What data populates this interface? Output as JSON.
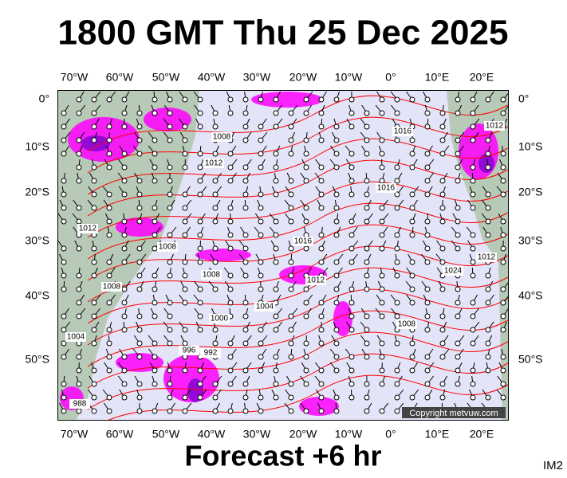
{
  "header": {
    "title": "1800 GMT Thu 25 Dec 2025"
  },
  "map": {
    "lon_labels": [
      "70°W",
      "60°W",
      "50°W",
      "40°W",
      "30°W",
      "20°W",
      "10°W",
      "0°",
      "10°E",
      "20°E"
    ],
    "lat_labels": [
      "0°",
      "10°S",
      "20°S",
      "30°S",
      "40°S",
      "50°S"
    ],
    "isobar_labels": [
      "1016",
      "1016",
      "1016",
      "1012",
      "1012",
      "1012",
      "1024",
      "1008",
      "1012",
      "1012",
      "1008",
      "1008",
      "1008",
      "1004",
      "1008",
      "1000",
      "1004",
      "996",
      "992",
      "988"
    ],
    "copyright": "Copyright metvuw.com"
  },
  "footer": {
    "forecast": "Forecast +6 hr",
    "id": "IM2"
  }
}
